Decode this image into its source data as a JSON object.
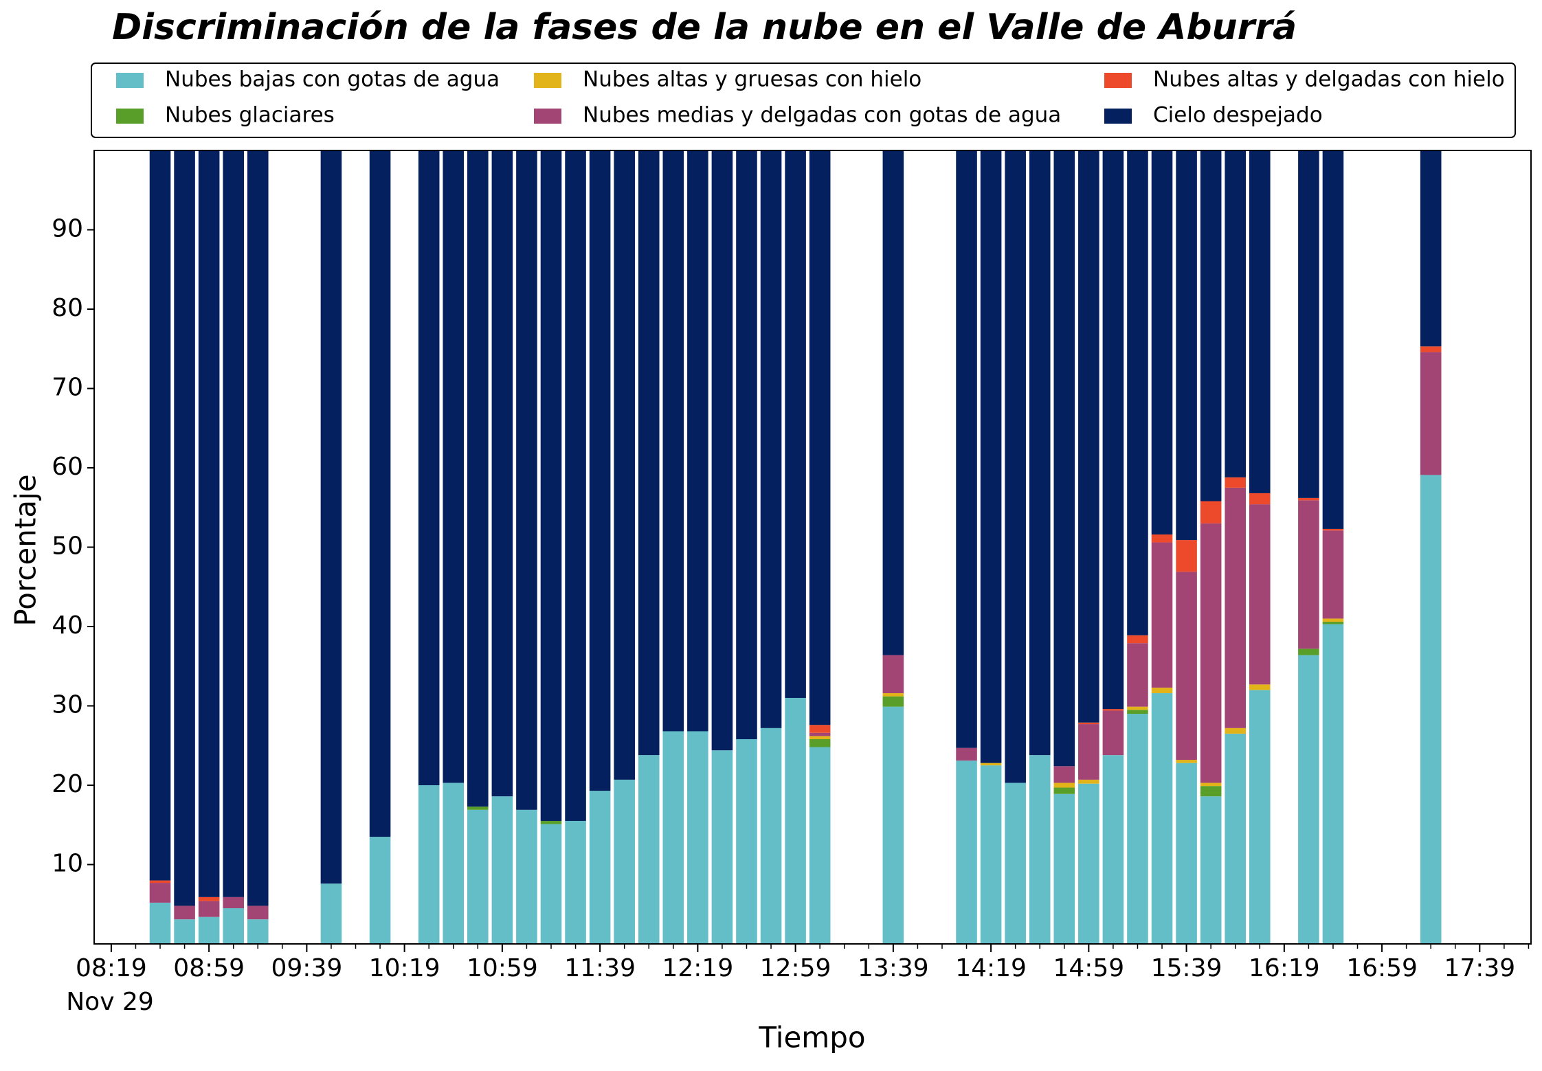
{
  "chart_data": {
    "type": "bar",
    "stacked": true,
    "title": "Discriminación de la fases de la nube en el Valle de Aburrá",
    "xlabel": "Tiempo",
    "ylabel": "Porcentaje",
    "x_date_label": "Nov 29",
    "x": [
      "08:39",
      "08:49",
      "08:59",
      "09:09",
      "09:19",
      "09:49",
      "10:09",
      "10:29",
      "10:39",
      "10:49",
      "10:59",
      "11:09",
      "11:19",
      "11:29",
      "11:39",
      "11:49",
      "11:59",
      "12:09",
      "12:19",
      "12:29",
      "12:39",
      "12:49",
      "12:59",
      "13:09",
      "13:39",
      "14:09",
      "14:19",
      "14:29",
      "14:39",
      "14:49",
      "14:59",
      "15:09",
      "15:19",
      "15:29",
      "15:39",
      "15:49",
      "15:59",
      "16:09",
      "16:29",
      "16:39",
      "17:19"
    ],
    "xlim": [
      "08:12",
      "18:00"
    ],
    "xticks": [
      "08:19",
      "08:59",
      "09:39",
      "10:19",
      "10:59",
      "11:39",
      "12:19",
      "12:59",
      "13:39",
      "14:19",
      "14:59",
      "15:39",
      "16:19",
      "16:59",
      "17:39"
    ],
    "ylim": [
      0,
      100
    ],
    "yticks": [
      10,
      20,
      30,
      40,
      50,
      60,
      70,
      80,
      90
    ],
    "legend": "top-outside",
    "series": [
      {
        "name": "Nubes bajas con gotas de agua",
        "color": "#64bec8",
        "values": [
          5.2,
          3.1,
          3.4,
          4.5,
          3.1,
          7.6,
          13.5,
          20.0,
          20.3,
          16.9,
          18.6,
          16.9,
          15.1,
          15.5,
          19.3,
          20.7,
          23.8,
          26.8,
          26.8,
          24.4,
          25.8,
          27.2,
          31.0,
          24.8,
          29.9,
          23.1,
          22.5,
          20.3,
          23.8,
          18.9,
          20.2,
          23.8,
          29.0,
          31.6,
          22.8,
          18.6,
          26.5,
          32.0,
          36.4,
          40.3,
          59.1
        ]
      },
      {
        "name": "Nubes glaciares",
        "color": "#5a9e2a",
        "values": [
          0,
          0,
          0,
          0,
          0,
          0,
          0,
          0,
          0,
          0.4,
          0,
          0,
          0.4,
          0,
          0,
          0,
          0,
          0,
          0,
          0,
          0,
          0,
          0,
          1.0,
          1.3,
          0,
          0,
          0,
          0,
          0.8,
          0,
          0,
          0.5,
          0,
          0,
          1.3,
          0,
          0,
          0.8,
          0.3,
          0
        ]
      },
      {
        "name": "Nubes altas y gruesas con hielo",
        "color": "#e3b31a",
        "values": [
          0,
          0,
          0,
          0,
          0,
          0,
          0,
          0,
          0,
          0,
          0,
          0,
          0,
          0,
          0,
          0,
          0,
          0,
          0,
          0,
          0,
          0,
          0,
          0.4,
          0.4,
          0,
          0.3,
          0,
          0,
          0.6,
          0.5,
          0,
          0.4,
          0.7,
          0.4,
          0.4,
          0.7,
          0.7,
          0,
          0.4,
          0
        ]
      },
      {
        "name": "Nubes medias y delgadas con gotas de agua",
        "color": "#a24474",
        "values": [
          2.5,
          1.7,
          2.0,
          1.4,
          1.7,
          0,
          0,
          0,
          0,
          0,
          0,
          0,
          0,
          0,
          0,
          0,
          0,
          0,
          0,
          0,
          0,
          0,
          0,
          0.4,
          4.8,
          1.6,
          0,
          0,
          0,
          2.1,
          7.0,
          5.6,
          8.0,
          18.3,
          23.7,
          32.7,
          30.3,
          22.7,
          18.7,
          11.1,
          15.5
        ]
      },
      {
        "name": "Nubes altas y delgadas con hielo",
        "color": "#ec4a2a",
        "values": [
          0.3,
          0,
          0.5,
          0,
          0,
          0,
          0,
          0,
          0,
          0,
          0,
          0,
          0,
          0,
          0,
          0,
          0,
          0,
          0,
          0,
          0,
          0,
          0,
          1.0,
          0,
          0,
          0,
          0,
          0,
          0,
          0.2,
          0.2,
          1.0,
          1.0,
          4.0,
          2.8,
          1.3,
          1.4,
          0.3,
          0.2,
          0.7
        ]
      },
      {
        "name": "Cielo despejado",
        "color": "#04205e",
        "values": [
          92.0,
          95.2,
          94.1,
          94.1,
          95.2,
          92.4,
          86.5,
          80.0,
          79.7,
          82.7,
          81.4,
          83.1,
          84.5,
          84.5,
          80.7,
          79.3,
          76.2,
          73.2,
          73.2,
          75.6,
          74.2,
          72.8,
          69.0,
          72.4,
          63.6,
          75.3,
          77.2,
          79.7,
          76.2,
          77.6,
          72.1,
          70.4,
          61.1,
          48.4,
          49.1,
          44.2,
          41.2,
          43.2,
          43.8,
          47.7,
          24.7
        ]
      }
    ]
  }
}
